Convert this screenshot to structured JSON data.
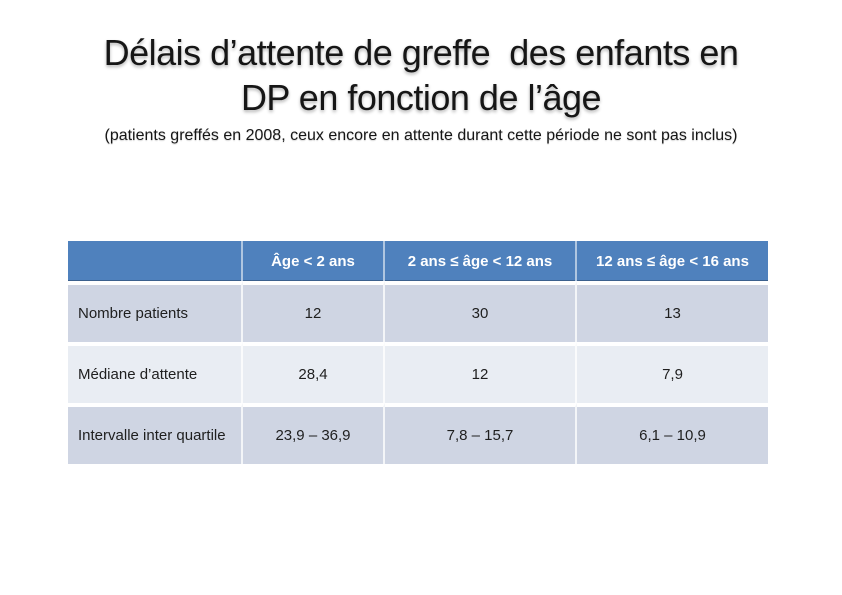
{
  "slide": {
    "title_line1": "Délais d’attente de greffe  des enfants en",
    "title_line2": "DP en fonction de l’âge",
    "subtitle": "(patients greffés en 2008, ceux encore en attente durant cette période ne sont pas inclus)"
  },
  "table": {
    "columns": [
      "",
      "Âge < 2 ans",
      "2 ans ≤ âge < 12 ans",
      "12 ans ≤ âge < 16 ans"
    ],
    "rows": [
      {
        "label": "Nombre patients",
        "values": [
          "12",
          "30",
          "13"
        ]
      },
      {
        "label": "Médiane d’attente",
        "values": [
          "28,4",
          "12",
          "7,9"
        ]
      },
      {
        "label": "Intervalle inter quartile",
        "values": [
          "23,9 – 36,9",
          "7,8 – 15,7",
          "6,1 – 10,9"
        ]
      }
    ]
  },
  "colors": {
    "header_bg": "#4f81bd",
    "header_text": "#ffffff",
    "row_band_dark": "#cfd5e3",
    "row_band_light": "#e9edf3",
    "body_text": "#1f1f1f",
    "background": "#ffffff"
  }
}
